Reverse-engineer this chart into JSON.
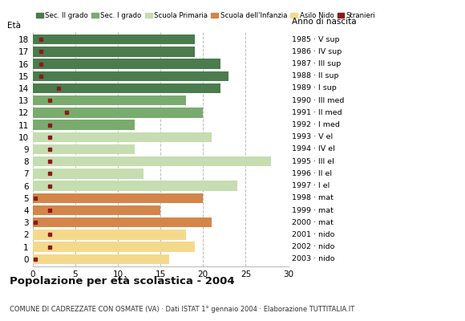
{
  "ages": [
    18,
    17,
    16,
    15,
    14,
    13,
    12,
    11,
    10,
    9,
    8,
    7,
    6,
    5,
    4,
    3,
    2,
    1,
    0
  ],
  "years": [
    "1985 · V sup",
    "1986 · IV sup",
    "1987 · III sup",
    "1988 · II sup",
    "1989 · I sup",
    "1990 · III med",
    "1991 · II med",
    "1992 · I med",
    "1993 · V el",
    "1994 · IV el",
    "1995 · III el",
    "1996 · II el",
    "1997 · I el",
    "1998 · mat",
    "1999 · mat",
    "2000 · mat",
    "2001 · nido",
    "2002 · nido",
    "2003 · nido"
  ],
  "bar_values": [
    19,
    19,
    22,
    23,
    22,
    18,
    20,
    12,
    21,
    12,
    28,
    13,
    24,
    20,
    15,
    21,
    18,
    19,
    16
  ],
  "stranieri": [
    1,
    1,
    1,
    1,
    3,
    2,
    4,
    2,
    2,
    2,
    2,
    2,
    2,
    0.3,
    2,
    0.3,
    2,
    2,
    0.3
  ],
  "categories": {
    "sec2": [
      14,
      15,
      16,
      17,
      18
    ],
    "sec1": [
      11,
      12,
      13
    ],
    "primaria": [
      6,
      7,
      8,
      9,
      10
    ],
    "infanzia": [
      3,
      4,
      5
    ],
    "nido": [
      0,
      1,
      2
    ]
  },
  "colors": {
    "sec2": "#4a7c4e",
    "sec1": "#7aab6e",
    "primaria": "#c5ddb0",
    "infanzia": "#d4854a",
    "nido": "#f5d98b",
    "stranieri": "#8b1a1a"
  },
  "legend_labels": [
    "Sec. II grado",
    "Sec. I grado",
    "Scuola Primaria",
    "Scuola dell'Infanzia",
    "Asilo Nido",
    "Stranieri"
  ],
  "title": "Popolazione per età scolastica - 2004",
  "subtitle": "COMUNE DI CADREZZATE CON OSMATE (VA) · Dati ISTAT 1° gennaio 2004 · Elaborazione TUTTITALIA.IT",
  "eta_label": "Età",
  "anno_label": "Anno di nascita",
  "xlim": [
    0,
    30
  ],
  "xticks": [
    0,
    5,
    10,
    15,
    20,
    25,
    30
  ]
}
